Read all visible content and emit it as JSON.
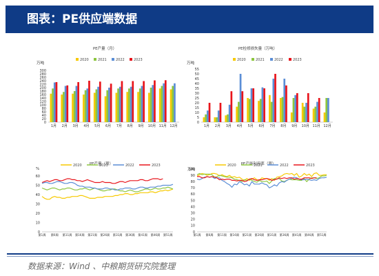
{
  "header": {
    "title": "图表：PE供应端数据"
  },
  "colors": {
    "s2020": "#f7c900",
    "s2021": "#8dc63f",
    "s2022": "#5b8ed6",
    "s2023": "#e8141b"
  },
  "source": "数据来源：Wind 、中粮期货研究院整理",
  "chart_data": [
    {
      "type": "bar",
      "title": "PE产量（月）",
      "ylabel": "万吨",
      "ylim": [
        0,
        300
      ],
      "yticks": [
        "0",
        "20",
        "40",
        "60",
        "80",
        "100",
        "120",
        "140",
        "160",
        "180",
        "200",
        "220",
        "240",
        "260",
        "280",
        "300"
      ],
      "categories": [
        "1月",
        "2月",
        "3月",
        "4月",
        "5月",
        "6月",
        "7月",
        "8月",
        "9月",
        "10月",
        "11月",
        "12月"
      ],
      "series": [
        {
          "name": "2020",
          "values": [
            165,
            160,
            165,
            160,
            170,
            150,
            170,
            175,
            175,
            170,
            195,
            190
          ]
        },
        {
          "name": "2021",
          "values": [
            195,
            175,
            180,
            185,
            190,
            185,
            195,
            195,
            195,
            200,
            210,
            210
          ]
        },
        {
          "name": "2022",
          "values": [
            230,
            210,
            210,
            195,
            205,
            200,
            205,
            205,
            210,
            215,
            225,
            225
          ]
        },
        {
          "name": "2023",
          "values": [
            232,
            213,
            232,
            240,
            235,
            223,
            238,
            238,
            238,
            242,
            243,
            null
          ]
        }
      ]
    },
    {
      "type": "bar",
      "title": "PE检修损失量（万吨）",
      "ylabel": "万吨",
      "ylim": [
        0,
        55
      ],
      "yticks": [
        "0",
        "5",
        "10",
        "15",
        "20",
        "25",
        "30",
        "35",
        "40",
        "45",
        "50",
        "55"
      ],
      "categories": [
        "1月",
        "2月",
        "3月",
        "4月",
        "5月",
        "6月",
        "7月",
        "8月",
        "9月",
        "10月",
        "11月",
        "12月"
      ],
      "series": [
        {
          "name": "2020",
          "values": [
            5,
            5,
            7,
            16,
            25,
            22,
            28,
            25,
            10,
            20,
            14,
            10
          ]
        },
        {
          "name": "2021",
          "values": [
            8,
            5,
            8,
            21,
            24,
            24,
            21,
            26,
            25,
            16,
            16,
            25
          ]
        },
        {
          "name": "2022",
          "values": [
            12,
            12,
            18,
            50,
            35,
            36,
            45,
            45,
            28,
            20,
            21,
            25
          ]
        },
        {
          "name": "2023",
          "values": [
            20,
            20,
            32,
            32,
            35,
            35,
            50,
            38,
            30,
            30,
            25,
            null
          ]
        }
      ]
    },
    {
      "type": "line",
      "title": "PE产量（周）",
      "ylabel": "%",
      "ylim": [
        0,
        60
      ],
      "yticks": [
        "0",
        "10",
        "20",
        "30",
        "40",
        "50",
        "60"
      ],
      "xticks": [
        "第1周",
        "第6周",
        "第11周",
        "第16周",
        "第21周",
        "第26周",
        "第31周",
        "第36周",
        "第41周",
        "第46周",
        "第51周"
      ],
      "series": [
        {
          "name": "2020",
          "values": [
            38,
            36,
            35,
            35,
            37,
            38,
            37,
            37,
            36,
            36,
            37,
            37,
            38,
            38,
            38,
            39,
            39,
            38,
            37,
            36,
            36,
            36,
            37,
            37,
            37,
            38,
            38,
            38,
            38,
            39,
            39,
            40,
            40,
            41,
            41,
            40,
            40,
            41,
            41,
            42,
            42,
            42,
            42,
            43,
            43,
            42,
            43,
            44,
            44,
            45,
            44,
            45,
            46
          ]
        },
        {
          "name": "2021",
          "values": [
            47,
            46,
            45,
            46,
            47,
            47,
            46,
            45,
            46,
            46,
            47,
            47,
            46,
            45,
            45,
            46,
            46,
            47,
            46,
            45,
            46,
            47,
            46,
            45,
            44,
            44,
            45,
            45,
            46,
            46,
            45,
            44,
            44,
            43,
            44,
            45,
            44,
            43,
            43,
            44,
            45,
            46,
            46,
            45,
            46,
            47,
            46,
            46,
            47,
            47,
            48,
            47,
            46
          ]
        },
        {
          "name": "2022",
          "values": [
            52,
            53,
            53,
            52,
            52,
            53,
            54,
            54,
            53,
            52,
            52,
            53,
            53,
            52,
            50,
            49,
            49,
            48,
            48,
            48,
            47,
            47,
            46,
            46,
            46,
            47,
            47,
            46,
            46,
            45,
            45,
            46,
            46,
            47,
            47,
            47,
            46,
            46,
            47,
            48,
            48,
            47,
            47,
            48,
            48,
            48,
            49,
            49,
            50,
            50,
            50,
            50,
            51
          ]
        },
        {
          "name": "2023",
          "values": [
            53,
            54,
            55,
            54,
            55,
            56,
            56,
            55,
            55,
            56,
            57,
            57,
            56,
            56,
            55,
            55,
            54,
            55,
            56,
            55,
            54,
            53,
            53,
            53,
            54,
            53,
            53,
            53,
            52,
            52,
            53,
            54,
            54,
            53,
            54,
            55,
            55,
            55,
            55,
            56,
            56,
            55,
            55,
            56,
            57,
            57,
            57,
            56,
            57,
            null,
            null,
            null,
            null
          ]
        }
      ]
    },
    {
      "type": "line",
      "title": "PE产能利用率（周）",
      "ylabel": "万吨",
      "ylim": [
        0,
        100
      ],
      "yticks": [
        "0",
        "10",
        "20",
        "30",
        "40",
        "50",
        "60",
        "70",
        "80",
        "90",
        "100"
      ],
      "xticks": [
        "第1周",
        "第6周",
        "第11周",
        "第16周",
        "第21周",
        "第26周",
        "第31周",
        "第36周",
        "第41周",
        "第46周",
        "第51周"
      ],
      "series": [
        {
          "name": "2020",
          "values": [
            89,
            91,
            93,
            92,
            90,
            91,
            93,
            93,
            92,
            89,
            91,
            89,
            88,
            90,
            87,
            88,
            86,
            87,
            84,
            82,
            85,
            82,
            84,
            86,
            83,
            82,
            86,
            85,
            85,
            82,
            85,
            82,
            87,
            88,
            89,
            92,
            93,
            92,
            93,
            90,
            93,
            87,
            89,
            93,
            90,
            92,
            88,
            93,
            94,
            90,
            90,
            91,
            91
          ]
        },
        {
          "name": "2021",
          "values": [
            91,
            93,
            91,
            92,
            92,
            92,
            91,
            87,
            88,
            90,
            89,
            88,
            87,
            87,
            86,
            84,
            83,
            82,
            80,
            83,
            82,
            84,
            82,
            80,
            79,
            82,
            80,
            80,
            81,
            77,
            81,
            85,
            84,
            85,
            81,
            80,
            82,
            84,
            83,
            83,
            83,
            82,
            82,
            85,
            80,
            84,
            86,
            86,
            85,
            86,
            89,
            89,
            90
          ]
        },
        {
          "name": "2022",
          "values": [
            84,
            83,
            85,
            87,
            88,
            87,
            88,
            85,
            86,
            86,
            82,
            80,
            77,
            75,
            71,
            76,
            75,
            80,
            78,
            75,
            76,
            73,
            80,
            76,
            76,
            76,
            78,
            76,
            75,
            70,
            72,
            75,
            73,
            78,
            80,
            79,
            82,
            84,
            85,
            87,
            86,
            84,
            83,
            83,
            84,
            83,
            82,
            83,
            82,
            85,
            86,
            86,
            87
          ]
        },
        {
          "name": "2023",
          "values": [
            88,
            88,
            86,
            86,
            88,
            87,
            88,
            87,
            86,
            83,
            84,
            83,
            84,
            84,
            82,
            82,
            81,
            82,
            82,
            80,
            81,
            84,
            85,
            83,
            82,
            83,
            83,
            84,
            85,
            84,
            82,
            83,
            84,
            86,
            85,
            86,
            85,
            86,
            86,
            84,
            85,
            84,
            84,
            86,
            86,
            86,
            85,
            86,
            86,
            null,
            null,
            null,
            null
          ]
        }
      ]
    }
  ]
}
